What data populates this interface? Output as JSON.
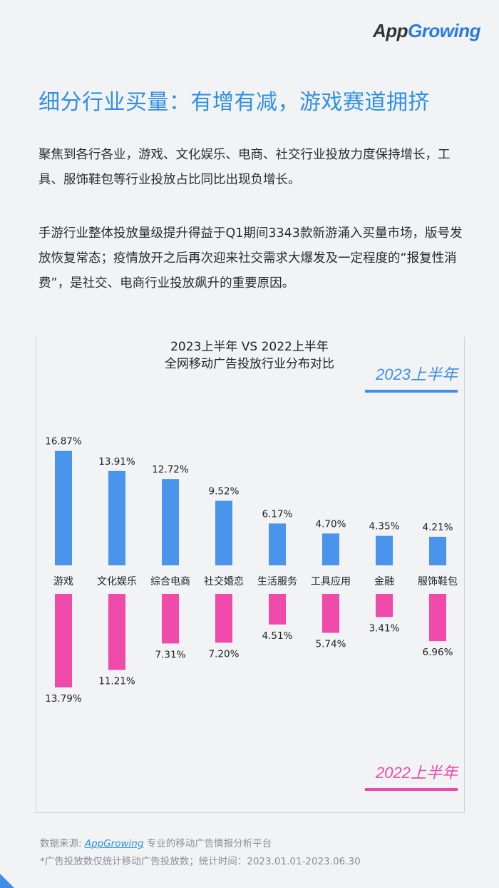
{
  "header": {
    "logo_part1": "App",
    "logo_part2": "Growing"
  },
  "title": "细分行业买量：有增有减，游戏赛道拥挤",
  "paragraphs": [
    "聚焦到各行各业，游戏、文化娱乐、电商、社交行业投放力度保持增长，工具、服饰鞋包等行业投放占比同比出现负增长。",
    "手游行业整体投放量级提升得益于Q1期间3343款新游涌入买量市场，版号发放恢复常态；疫情放开之后再次迎来社交需求大爆发及一定程度的“报复性消费”，是社交、电商行业投放飙升的重要原因。"
  ],
  "chart_data": {
    "type": "bar",
    "title_line1": "2023上半年 VS 2022上半年",
    "title_line2": "全网移动广告投放行业分布对比",
    "categories": [
      "游戏",
      "文化娱乐",
      "综合电商",
      "社交婚恋",
      "生活服务",
      "工具应用",
      "金融",
      "服饰鞋包"
    ],
    "series": [
      {
        "name": "2023上半年",
        "color": "#4a94ec",
        "values": [
          16.87,
          13.91,
          12.72,
          9.52,
          6.17,
          4.7,
          4.35,
          4.21
        ]
      },
      {
        "name": "2022上半年",
        "color": "#f04aab",
        "values": [
          13.79,
          11.21,
          7.31,
          7.2,
          4.51,
          5.74,
          3.41,
          6.96
        ]
      }
    ],
    "unit": "%"
  },
  "footer": {
    "source_prefix": "数据来源: ",
    "source_brand": "AppGrowing",
    "source_suffix": " 专业的移动广告情报分析平台",
    "note": "*广告投放数仅统计移动广告投放数；统计时间：2023.01.01-2023.06.30"
  }
}
